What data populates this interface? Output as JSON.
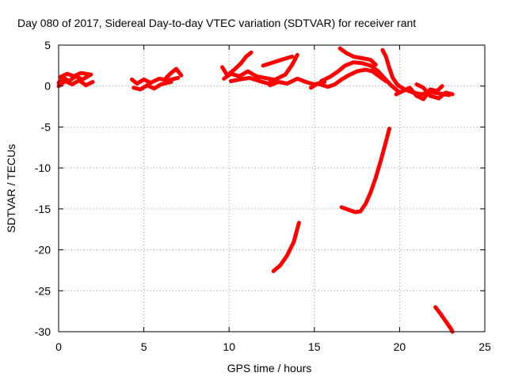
{
  "chart_data": {
    "type": "scatter",
    "title": "Day 080 of 2017, Sidereal Day-to-day VTEC variation (SDTVAR) for receiver rant",
    "xlabel": "GPS time / hours",
    "ylabel": "SDTVAR / TECUs",
    "xlim": [
      0,
      25
    ],
    "ylim": [
      -30,
      5
    ],
    "xticks": [
      0,
      5,
      10,
      15,
      20,
      25
    ],
    "yticks": [
      5,
      0,
      -5,
      -10,
      -15,
      -20,
      -25,
      -30
    ],
    "grid": true,
    "color": "#ff0000",
    "tracks": [
      [
        [
          0.0,
          0.4
        ],
        [
          0.3,
          1.0
        ],
        [
          0.6,
          0.6
        ],
        [
          1.0,
          1.2
        ],
        [
          1.4,
          0.8
        ],
        [
          1.8,
          1.3
        ]
      ],
      [
        [
          0.0,
          0.0
        ],
        [
          0.4,
          0.6
        ],
        [
          0.8,
          0.2
        ],
        [
          1.2,
          0.7
        ],
        [
          1.6,
          0.1
        ],
        [
          2.0,
          0.5
        ]
      ],
      [
        [
          0.1,
          1.1
        ],
        [
          0.5,
          1.5
        ],
        [
          0.9,
          1.2
        ],
        [
          1.3,
          1.6
        ],
        [
          1.9,
          1.4
        ]
      ],
      [
        [
          4.3,
          0.8
        ],
        [
          4.6,
          0.3
        ],
        [
          5.0,
          0.8
        ],
        [
          5.4,
          0.4
        ],
        [
          5.9,
          0.9
        ],
        [
          6.4,
          0.7
        ],
        [
          7.0,
          1.0
        ]
      ],
      [
        [
          4.4,
          -0.2
        ],
        [
          4.8,
          -0.4
        ],
        [
          5.2,
          0.1
        ],
        [
          5.6,
          -0.3
        ],
        [
          6.0,
          0.2
        ],
        [
          6.6,
          0.5
        ]
      ],
      [
        [
          6.3,
          1.0
        ],
        [
          6.6,
          1.6
        ],
        [
          6.9,
          2.1
        ],
        [
          7.2,
          1.3
        ]
      ],
      [
        [
          9.6,
          2.3
        ],
        [
          9.9,
          1.3
        ],
        [
          10.3,
          2.0
        ],
        [
          10.7,
          2.8
        ],
        [
          11.0,
          3.6
        ],
        [
          11.3,
          4.1
        ]
      ],
      [
        [
          9.7,
          0.9
        ],
        [
          10.1,
          1.5
        ],
        [
          10.6,
          1.2
        ],
        [
          11.1,
          1.8
        ],
        [
          11.6,
          1.2
        ],
        [
          12.1,
          1.0
        ],
        [
          12.6,
          0.8
        ]
      ],
      [
        [
          10.1,
          0.6
        ],
        [
          10.6,
          0.8
        ],
        [
          11.2,
          1.0
        ],
        [
          11.8,
          0.6
        ],
        [
          12.3,
          0.3
        ],
        [
          12.8,
          0.9
        ],
        [
          13.3,
          1.4
        ],
        [
          13.7,
          2.6
        ],
        [
          14.0,
          3.8
        ]
      ],
      [
        [
          12.4,
          0.1
        ],
        [
          12.9,
          0.5
        ],
        [
          13.4,
          0.3
        ],
        [
          14.0,
          0.9
        ],
        [
          14.5,
          0.5
        ],
        [
          15.0,
          0.2
        ],
        [
          15.6,
          0.5
        ]
      ],
      [
        [
          12.0,
          2.5
        ],
        [
          12.6,
          2.9
        ],
        [
          13.2,
          3.3
        ],
        [
          13.7,
          3.6
        ]
      ],
      [
        [
          14.8,
          -0.2
        ],
        [
          15.2,
          0.3
        ],
        [
          15.8,
          -0.1
        ],
        [
          16.2,
          0.2
        ],
        [
          16.6,
          0.8
        ],
        [
          17.0,
          1.3
        ],
        [
          17.5,
          1.8
        ],
        [
          18.0,
          2.0
        ],
        [
          18.4,
          1.8
        ],
        [
          18.8,
          1.2
        ],
        [
          19.2,
          0.6
        ]
      ],
      [
        [
          15.4,
          0.6
        ],
        [
          15.9,
          1.1
        ],
        [
          16.4,
          1.8
        ],
        [
          16.8,
          2.5
        ],
        [
          17.3,
          2.9
        ],
        [
          17.8,
          2.8
        ],
        [
          18.3,
          2.5
        ],
        [
          18.7,
          1.9
        ],
        [
          19.1,
          1.0
        ],
        [
          19.5,
          0.1
        ],
        [
          19.9,
          -0.6
        ]
      ],
      [
        [
          16.5,
          4.6
        ],
        [
          16.9,
          4.0
        ],
        [
          17.3,
          3.6
        ],
        [
          17.8,
          3.4
        ],
        [
          18.3,
          3.2
        ],
        [
          18.6,
          2.6
        ]
      ],
      [
        [
          19.0,
          4.4
        ],
        [
          19.2,
          3.6
        ],
        [
          19.4,
          2.2
        ],
        [
          19.6,
          1.0
        ],
        [
          19.9,
          0.1
        ],
        [
          20.3,
          -0.4
        ],
        [
          20.8,
          -0.8
        ],
        [
          21.3,
          -1.0
        ],
        [
          21.8,
          -0.7
        ],
        [
          22.3,
          -0.9
        ],
        [
          22.9,
          -1.1
        ]
      ],
      [
        [
          19.8,
          -1.0
        ],
        [
          20.2,
          -0.6
        ],
        [
          20.6,
          -0.2
        ],
        [
          21.0,
          -1.2
        ],
        [
          21.4,
          -1.6
        ],
        [
          21.8,
          -0.4
        ],
        [
          22.2,
          -0.6
        ],
        [
          22.5,
          0.0
        ]
      ],
      [
        [
          21.0,
          0.2
        ],
        [
          21.4,
          -0.2
        ],
        [
          21.8,
          -1.2
        ],
        [
          22.3,
          -1.5
        ],
        [
          22.7,
          -0.8
        ],
        [
          23.1,
          -1.0
        ]
      ],
      [
        [
          12.6,
          -22.6
        ],
        [
          13.0,
          -21.9
        ],
        [
          13.4,
          -20.7
        ],
        [
          13.8,
          -19.0
        ],
        [
          14.1,
          -16.7
        ]
      ],
      [
        [
          16.6,
          -14.8
        ],
        [
          17.0,
          -15.1
        ],
        [
          17.4,
          -15.4
        ],
        [
          17.7,
          -15.3
        ],
        [
          18.0,
          -14.4
        ],
        [
          18.3,
          -13.0
        ],
        [
          18.6,
          -11.2
        ],
        [
          18.9,
          -9.1
        ],
        [
          19.2,
          -6.8
        ],
        [
          19.4,
          -5.2
        ]
      ],
      [
        [
          22.1,
          -27.0
        ],
        [
          22.4,
          -27.8
        ],
        [
          22.7,
          -28.7
        ],
        [
          23.0,
          -29.6
        ],
        [
          23.1,
          -30.0
        ]
      ]
    ]
  }
}
